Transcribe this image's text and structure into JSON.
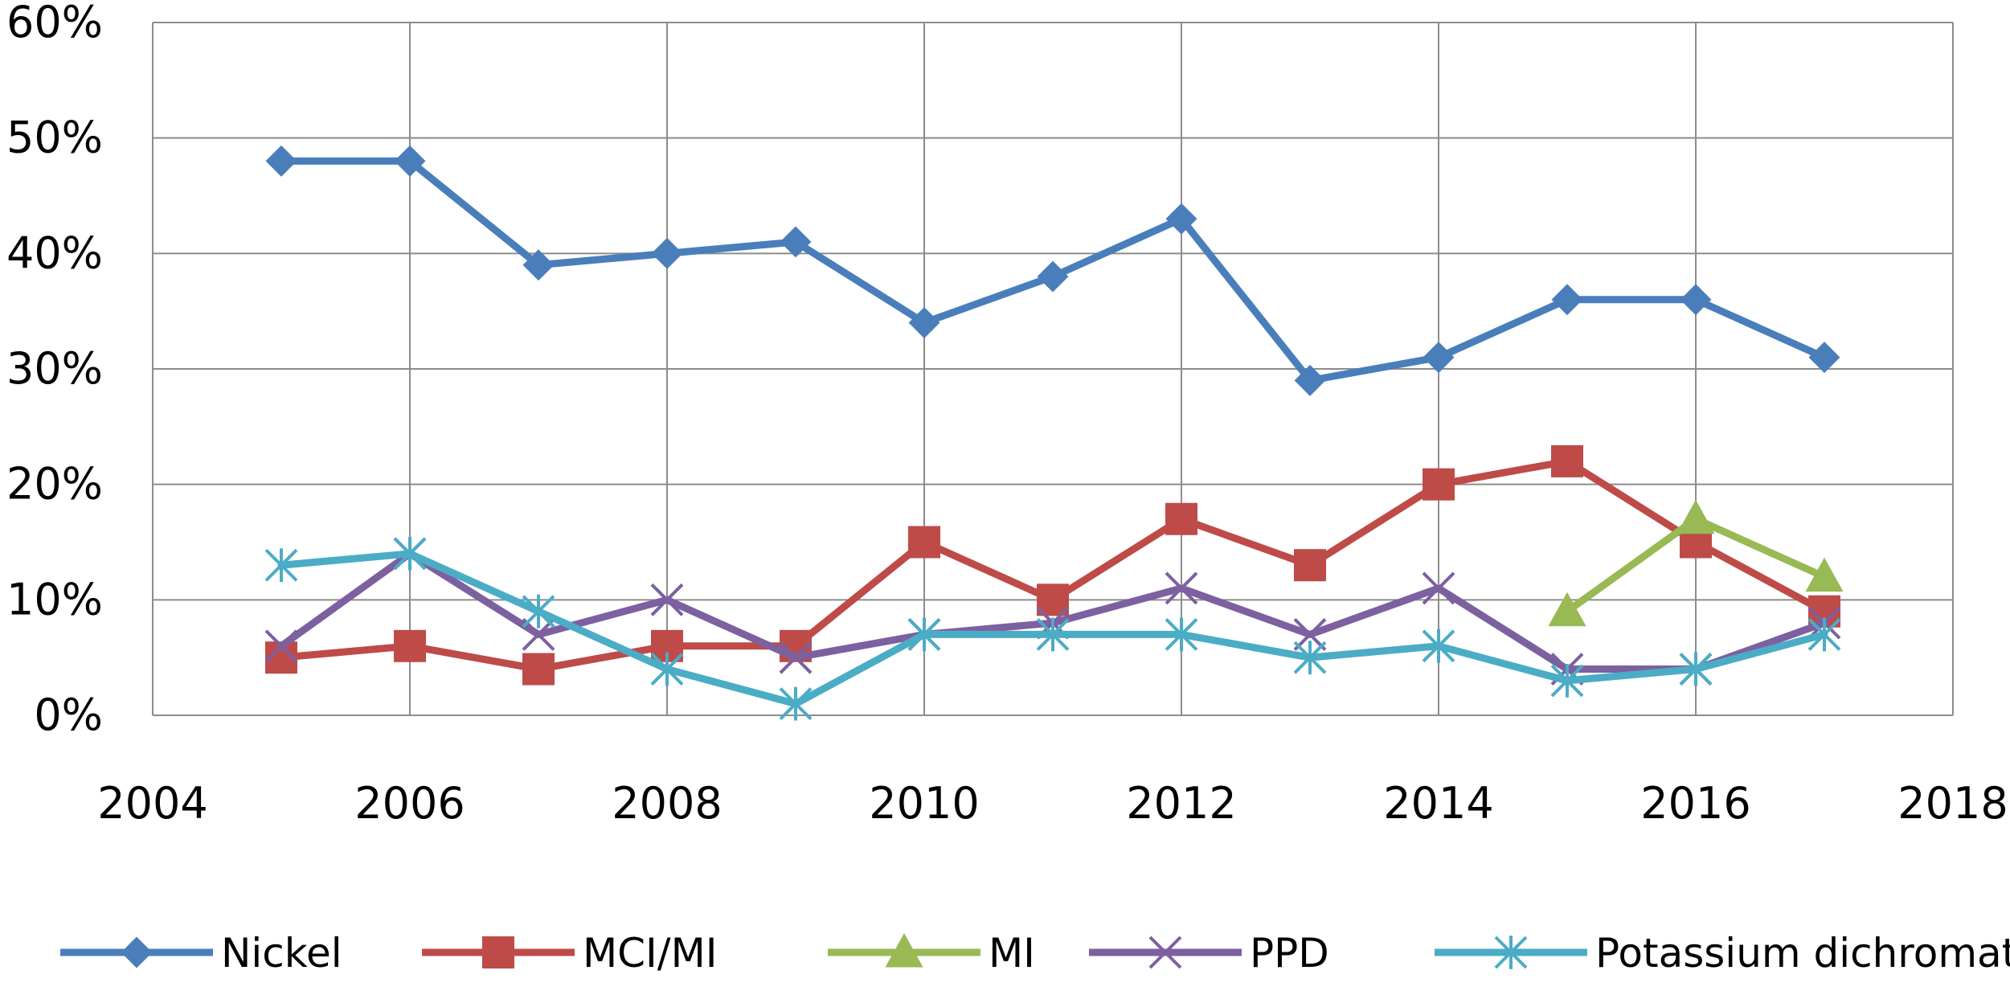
{
  "chart_data": {
    "type": "line",
    "title": "",
    "xlabel": "",
    "ylabel": "",
    "xlim": [
      2004,
      2018
    ],
    "ylim": [
      0,
      60
    ],
    "x_ticks": [
      "2004",
      "2006",
      "2008",
      "2010",
      "2012",
      "2014",
      "2016",
      "2018"
    ],
    "y_ticks": [
      "0%",
      "10%",
      "20%",
      "30%",
      "40%",
      "50%",
      "60%"
    ],
    "grid": true,
    "legend_position": "bottom",
    "series": [
      {
        "name": "Nickel",
        "color": "#4A7EBB",
        "marker": "diamond",
        "x": [
          2005,
          2006,
          2007,
          2008,
          2009,
          2010,
          2011,
          2012,
          2013,
          2014,
          2015,
          2016,
          2017
        ],
        "y": [
          48,
          48,
          39,
          40,
          41,
          34,
          38,
          43,
          29,
          31,
          36,
          36,
          31
        ]
      },
      {
        "name": "MCI/MI",
        "color": "#BE4B48",
        "marker": "square",
        "x": [
          2005,
          2006,
          2007,
          2008,
          2009,
          2010,
          2011,
          2012,
          2013,
          2014,
          2015,
          2016,
          2017
        ],
        "y": [
          5,
          6,
          4,
          6,
          6,
          15,
          10,
          17,
          13,
          20,
          22,
          15,
          9
        ]
      },
      {
        "name": "MI",
        "color": "#98B954",
        "marker": "triangle",
        "x": [
          2015,
          2016,
          2017
        ],
        "y": [
          9,
          17,
          12
        ]
      },
      {
        "name": "PPD",
        "color": "#7D60A0",
        "marker": "x",
        "x": [
          2005,
          2006,
          2007,
          2008,
          2009,
          2010,
          2011,
          2012,
          2013,
          2014,
          2015,
          2016,
          2017
        ],
        "y": [
          6,
          14,
          7,
          10,
          5,
          7,
          8,
          11,
          7,
          11,
          4,
          4,
          8
        ]
      },
      {
        "name": "Potassium dichromate",
        "color": "#4BACC6",
        "marker": "star",
        "x": [
          2005,
          2006,
          2007,
          2008,
          2009,
          2010,
          2011,
          2012,
          2013,
          2014,
          2015,
          2016,
          2017
        ],
        "y": [
          13,
          14,
          9,
          4,
          1,
          7,
          7,
          7,
          5,
          6,
          3,
          4,
          7
        ]
      }
    ]
  }
}
